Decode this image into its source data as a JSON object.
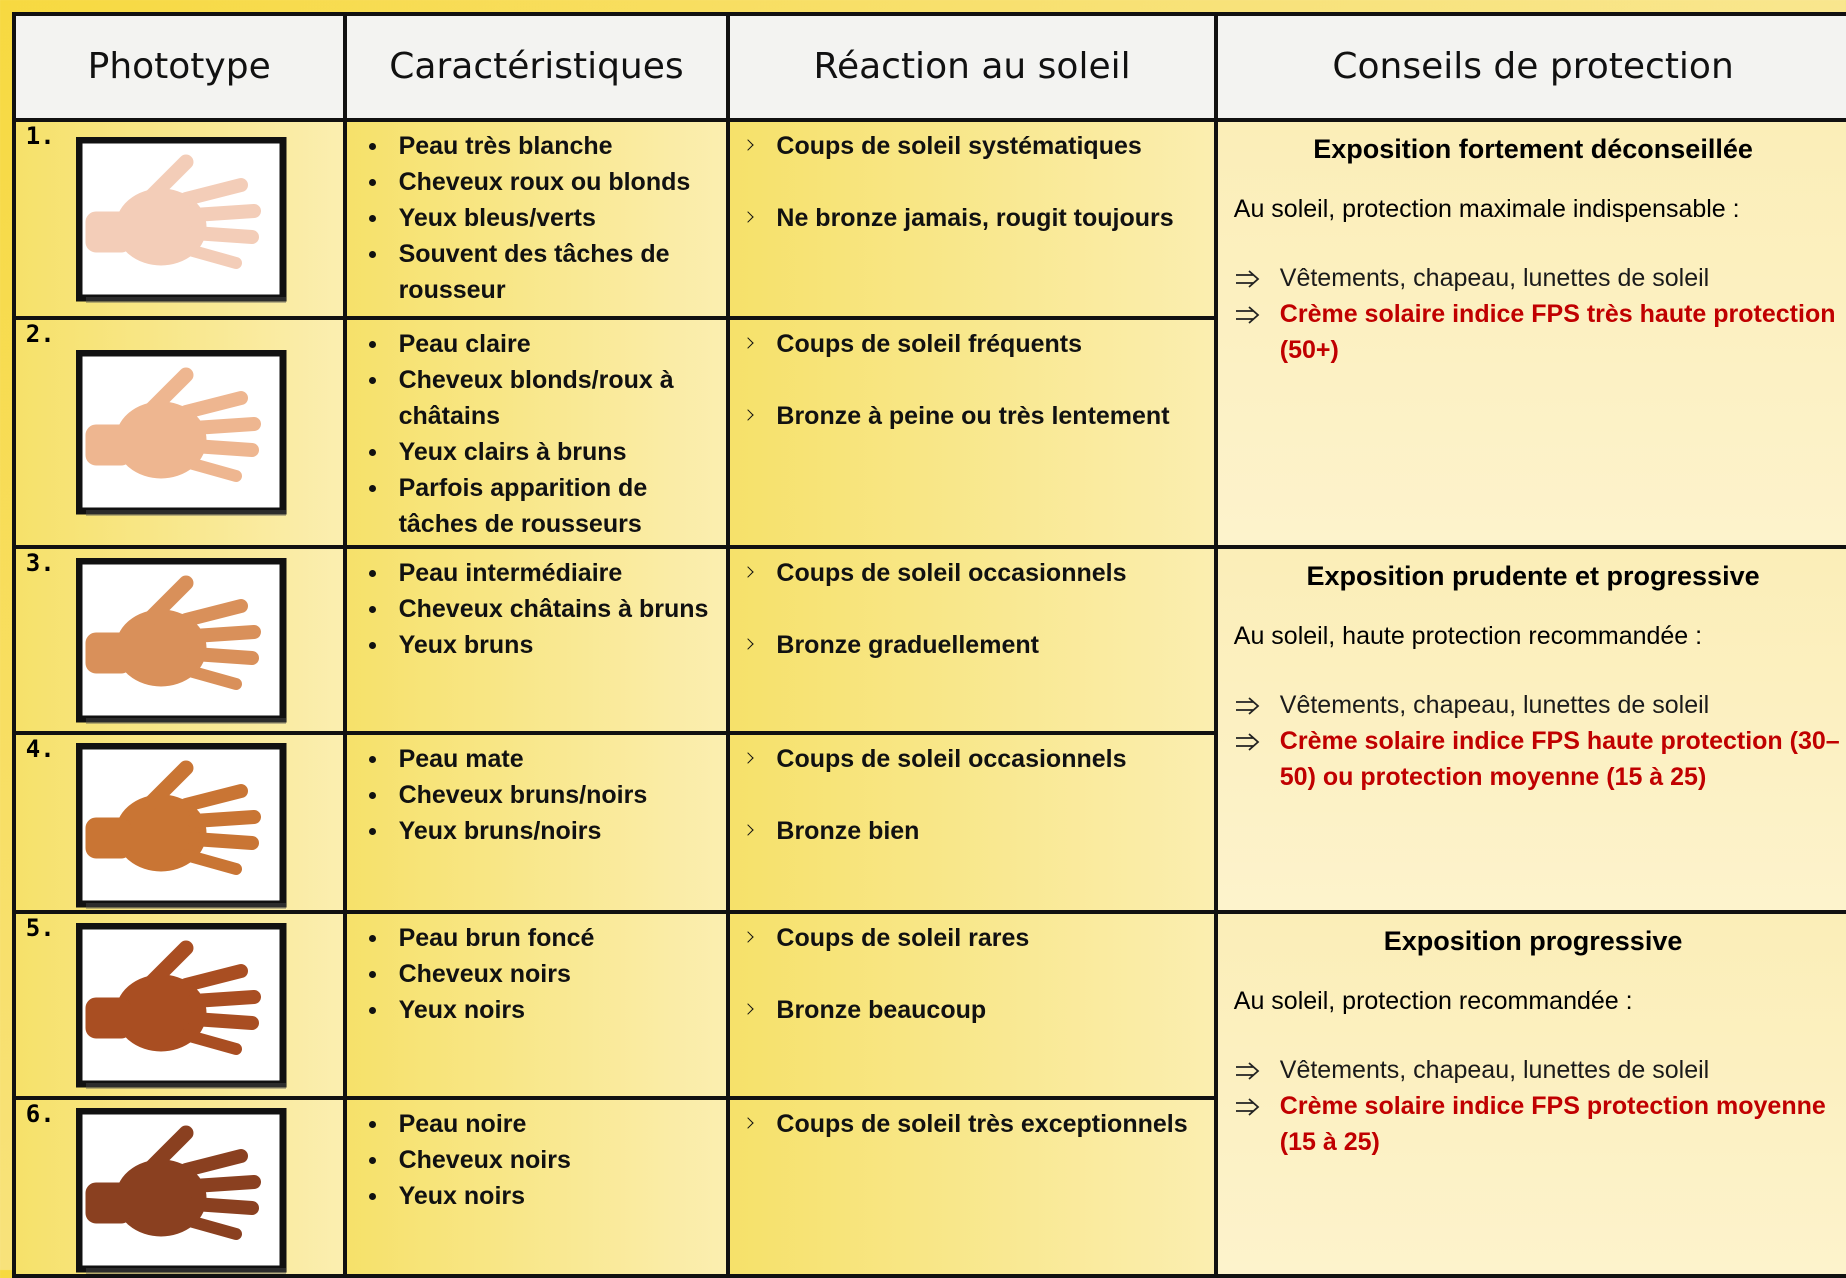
{
  "header": {
    "columns": [
      "Phototype",
      "Caractéristiques",
      "Réaction  au soleil",
      "Conseils de protection"
    ]
  },
  "rows": [
    {
      "number": "1.",
      "characteristics": [
        "Peau très blanche",
        "Cheveux roux ou blonds",
        "Yeux bleus/verts",
        "Souvent des tâches de rousseur"
      ],
      "reactions": [
        "Coups de soleil systématiques",
        "Ne bronze jamais, rougit toujours"
      ]
    },
    {
      "number": "2.",
      "characteristics": [
        "Peau claire",
        "Cheveux blonds/roux à châtains",
        "Yeux clairs à bruns",
        "Parfois apparition de tâches de rousseurs"
      ],
      "reactions": [
        "Coups de soleil fréquents",
        "Bronze à peine ou très lentement"
      ]
    },
    {
      "number": "3.",
      "characteristics": [
        "Peau intermédiaire",
        "Cheveux châtains à bruns",
        "Yeux bruns"
      ],
      "reactions": [
        "Coups de soleil occasionnels",
        "Bronze graduellement"
      ]
    },
    {
      "number": "4.",
      "characteristics": [
        "Peau mate",
        "Cheveux bruns/noirs",
        "Yeux bruns/noirs"
      ],
      "reactions": [
        "Coups de soleil occasionnels",
        "Bronze bien"
      ]
    },
    {
      "number": "5.",
      "characteristics": [
        "Peau brun foncé",
        "Cheveux noirs",
        "Yeux noirs"
      ],
      "reactions": [
        "Coups de soleil rares",
        "Bronze beaucoup"
      ]
    },
    {
      "number": "6.",
      "characteristics": [
        "Peau noire",
        "Cheveux noirs",
        "Yeux noirs"
      ],
      "reactions": [
        "Coups de soleil très exceptionnels"
      ]
    }
  ],
  "advice": [
    {
      "title": "Exposition fortement déconseillée",
      "intro": "Au soleil, protection maximale indispensable :",
      "items": [
        {
          "text": "Vêtements, chapeau, lunettes de soleil",
          "color": "#1a1a1a"
        },
        {
          "text": "Crème solaire indice FPS très haute protection (50+)",
          "color": "#c00000"
        }
      ]
    },
    {
      "title": "Exposition prudente et progressive",
      "intro": "Au soleil, haute protection recommandée :",
      "items": [
        {
          "text": "Vêtements, chapeau, lunettes de soleil",
          "color": "#1a1a1a"
        },
        {
          "text": "Crème solaire indice FPS haute protection (30–50) ou protection moyenne (15 à 25)",
          "color": "#c00000"
        }
      ]
    },
    {
      "title": "Exposition progressive",
      "intro": "Au soleil, protection recommandée :",
      "items": [
        {
          "text": "Vêtements, chapeau, lunettes de soleil",
          "color": "#1a1a1a"
        },
        {
          "text": "Crème solaire indice FPS protection moyenne (15 à 25)",
          "color": "#c00000"
        }
      ]
    }
  ]
}
